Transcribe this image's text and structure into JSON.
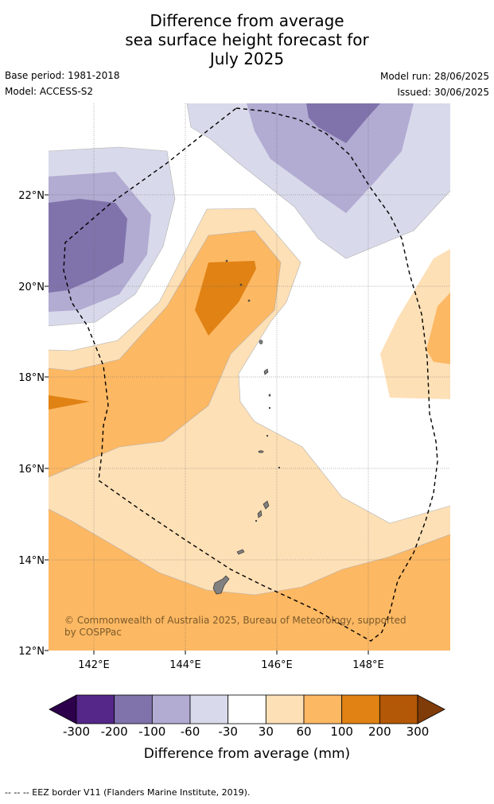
{
  "title_lines": [
    "Difference from average",
    "sea surface height forecast for",
    "July 2025"
  ],
  "meta": {
    "base_period": "Base period: 1981-2018",
    "model": "Model: ACCESS-S2",
    "model_run": "Model run: 28/06/2025",
    "issued": "Issued: 30/06/2025"
  },
  "map": {
    "lon_ticks": [
      "142°E",
      "144°E",
      "146°E",
      "148°E"
    ],
    "lat_ticks": [
      "22°N",
      "20°N",
      "18°N",
      "16°N",
      "14°N",
      "12°N"
    ],
    "lon_range": [
      141,
      149.8
    ],
    "lat_range": [
      12,
      24
    ],
    "gridlines": true,
    "copyright": "© Commonwealth of Australia 2025, Bureau of Meteorology, supported by COSPPac"
  },
  "colorbar": {
    "labels": [
      "-300",
      "-200",
      "-100",
      "-60",
      "-30",
      "30",
      "60",
      "100",
      "200",
      "300"
    ],
    "colors": [
      "#2d004b",
      "#542788",
      "#8073ac",
      "#b2abd2",
      "#d8daeb",
      "#ffffff",
      "#fee0b6",
      "#fdb863",
      "#e08214",
      "#b35806",
      "#7f3b08"
    ],
    "title": "Difference from average (mm)"
  },
  "footer": "--  --  -- EEZ border V11 (Flanders Marine Institute, 2019)."
}
